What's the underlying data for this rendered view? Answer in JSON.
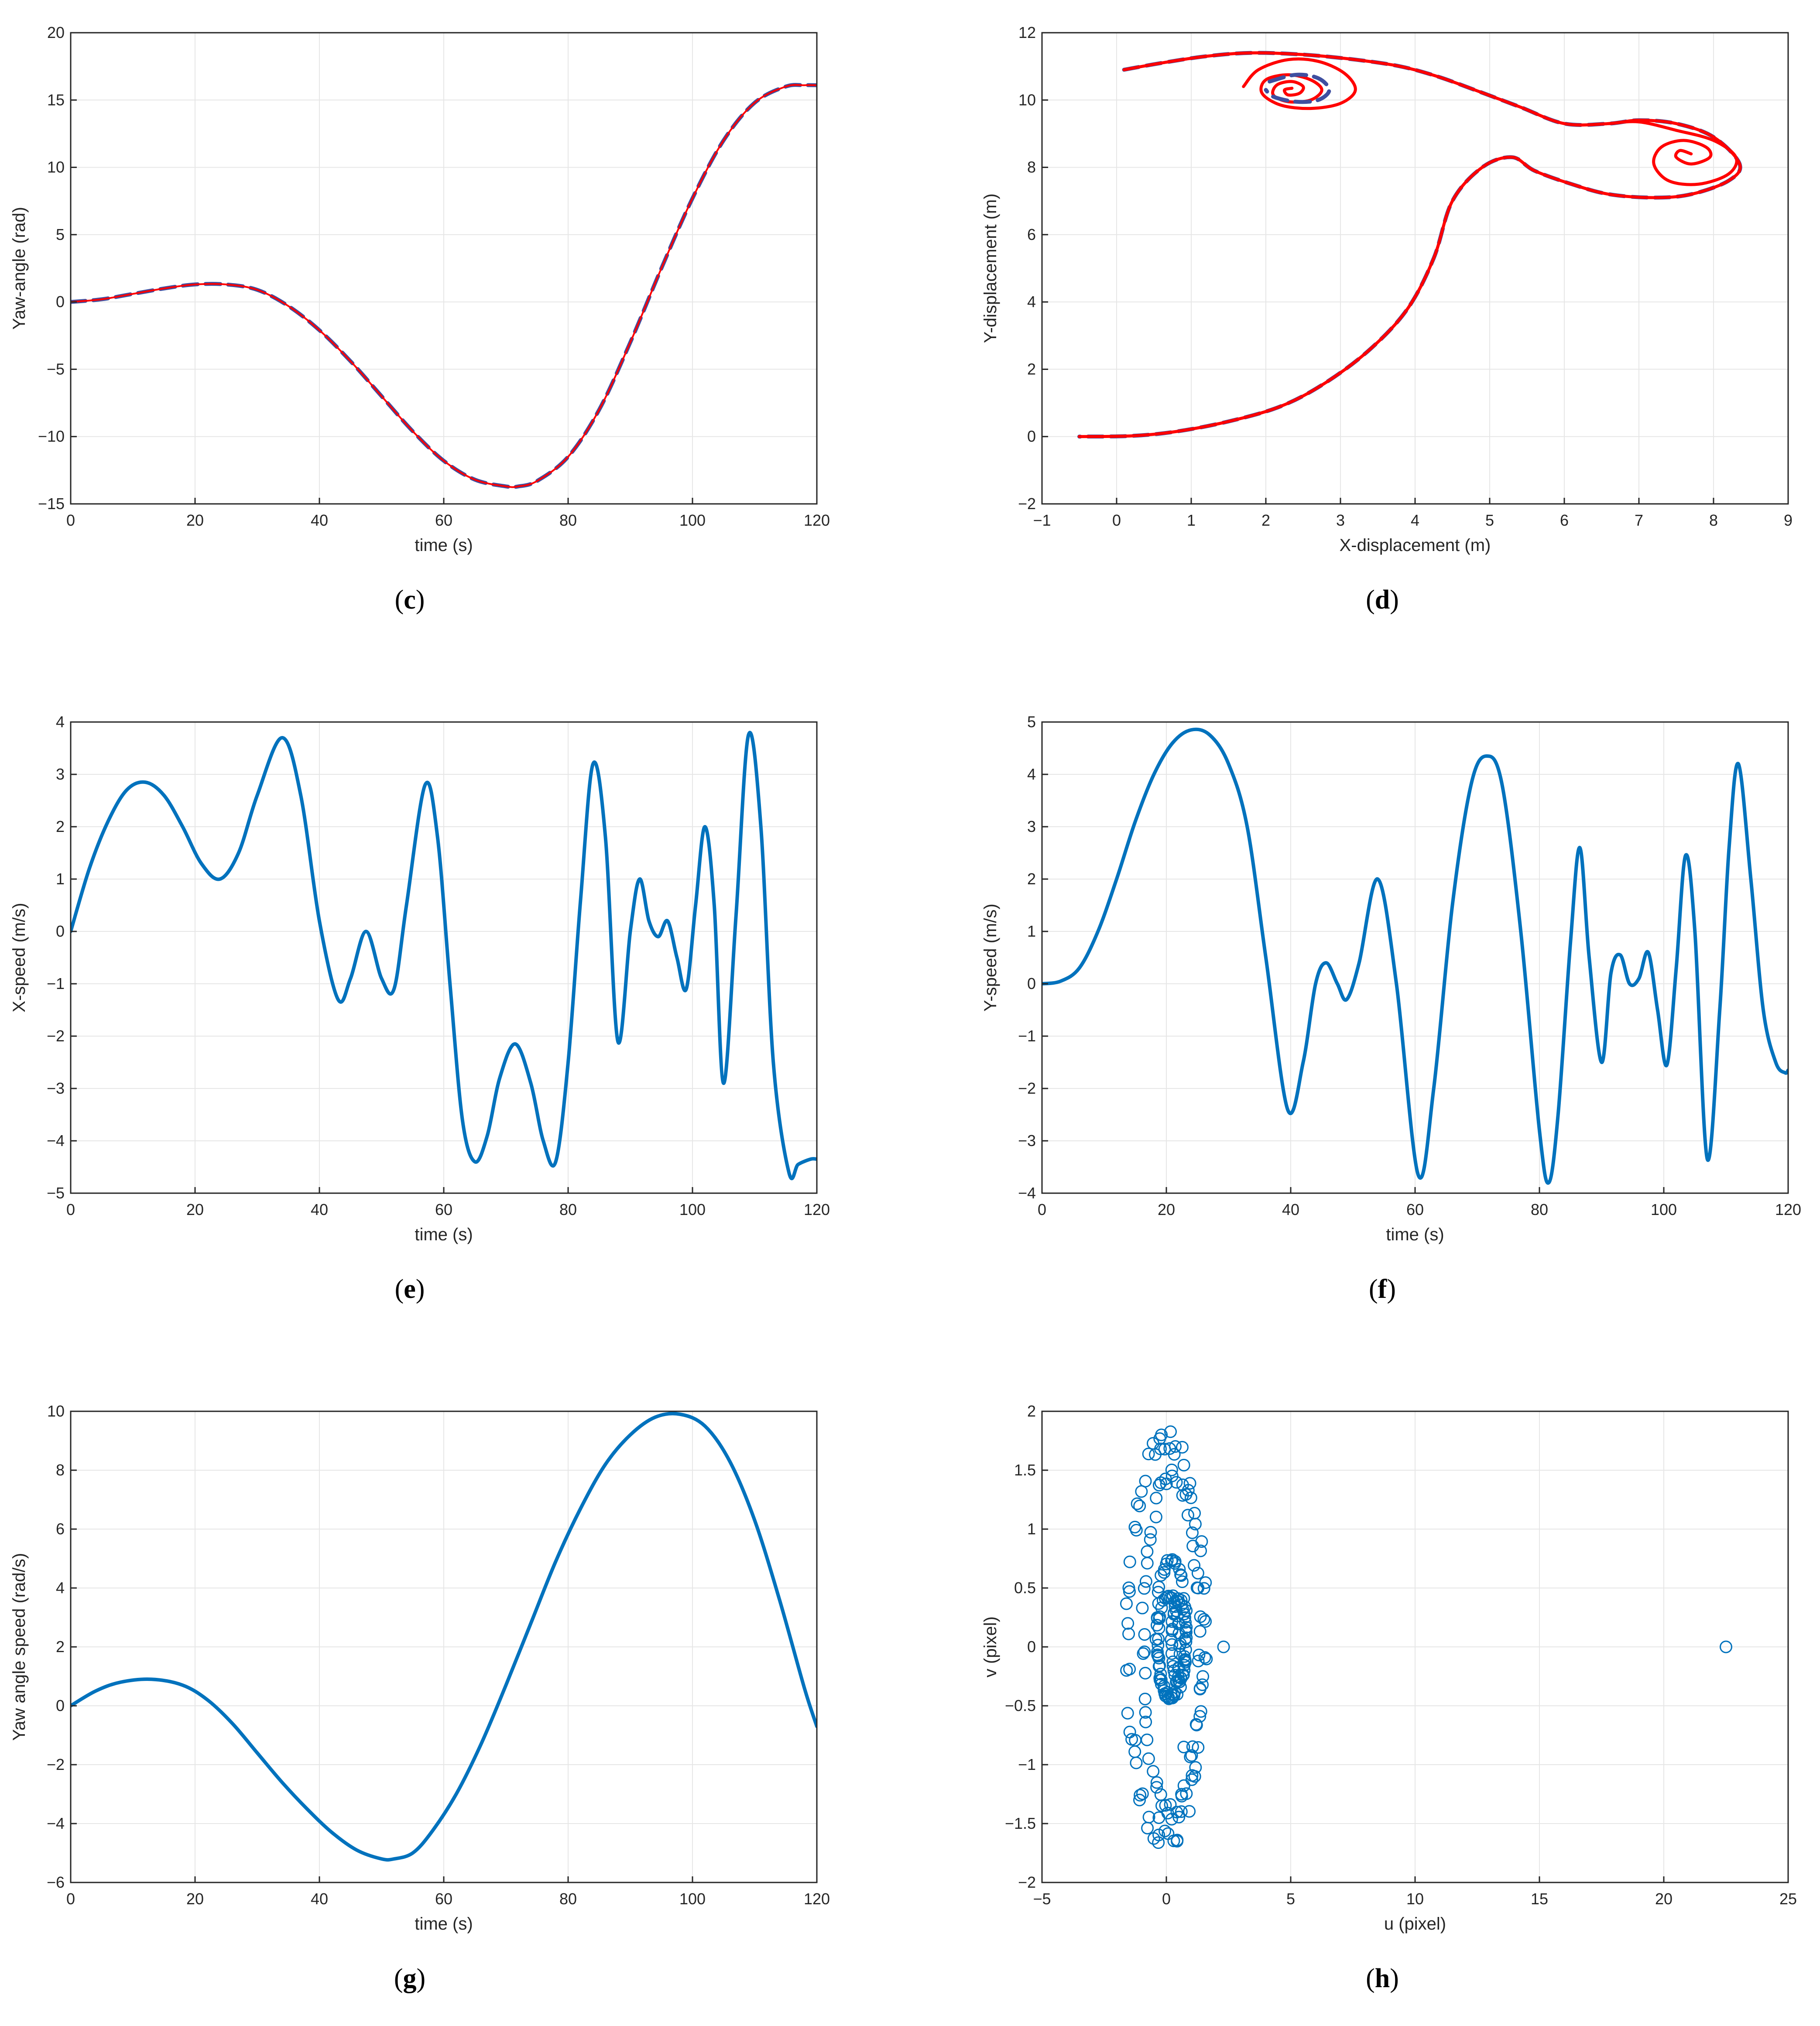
{
  "colors": {
    "blue": "#0072BD",
    "red": "#FF0000",
    "dashed_blue": "#3F4FA0",
    "grid": "#E6E6E6",
    "axis": "#262626"
  },
  "chart_data": [
    {
      "id": "c",
      "caption_letter": "c",
      "type": "line",
      "xlabel": "time (s)",
      "ylabel": "Yaw-angle (rad)",
      "xlim": [
        0,
        120
      ],
      "ylim": [
        -15,
        20
      ],
      "xticks": [
        0,
        20,
        40,
        60,
        80,
        100,
        120
      ],
      "yticks": [
        -15,
        -10,
        -5,
        0,
        5,
        10,
        15,
        20
      ],
      "grid": true,
      "series": [
        {
          "style": "dashed-blue",
          "x": [
            0,
            5,
            10,
            15,
            20,
            25,
            30,
            35,
            40,
            45,
            50,
            55,
            60,
            65,
            70,
            72,
            75,
            80,
            85,
            90,
            95,
            100,
            105,
            110,
            115,
            118,
            120
          ],
          "y": [
            0,
            0.2,
            0.6,
            1.0,
            1.3,
            1.3,
            0.9,
            -0.3,
            -2.1,
            -4.4,
            -7.0,
            -9.6,
            -11.8,
            -13.2,
            -13.7,
            -13.7,
            -13.3,
            -11.5,
            -8.0,
            -3.0,
            2.5,
            7.7,
            12.0,
            14.8,
            16.0,
            16.1,
            16.1
          ]
        },
        {
          "style": "solid-red",
          "x": [
            0,
            5,
            10,
            15,
            20,
            25,
            30,
            35,
            40,
            45,
            50,
            55,
            60,
            65,
            70,
            72,
            75,
            80,
            85,
            90,
            95,
            100,
            105,
            110,
            115,
            118,
            120
          ],
          "y": [
            0,
            0.2,
            0.6,
            1.0,
            1.3,
            1.3,
            0.9,
            -0.3,
            -2.1,
            -4.4,
            -7.0,
            -9.6,
            -11.8,
            -13.2,
            -13.7,
            -13.7,
            -13.3,
            -11.5,
            -8.0,
            -3.0,
            2.5,
            7.7,
            12.0,
            14.8,
            16.0,
            16.1,
            16.1
          ]
        }
      ]
    },
    {
      "id": "d",
      "caption_letter": "d",
      "type": "line",
      "xlabel": "X-displacement (m)",
      "ylabel": "Y-displacement (m)",
      "xlim": [
        -1,
        9
      ],
      "ylim": [
        -2,
        12
      ],
      "xticks": [
        -1,
        0,
        1,
        2,
        3,
        4,
        5,
        6,
        7,
        8,
        9
      ],
      "yticks": [
        -2,
        0,
        2,
        4,
        6,
        8,
        10,
        12
      ],
      "grid": true,
      "series": [
        {
          "style": "dashed-blue",
          "x": [
            0.1,
            0.6,
            1.2,
            1.8,
            2.5,
            3.2,
            3.8,
            4.3,
            4.8,
            5.4,
            6.0,
            6.6,
            7.0,
            7.5,
            8.0,
            8.35,
            8.2,
            7.7,
            7.2,
            6.6,
            6.1,
            5.6,
            5.3,
            4.9,
            4.5,
            4.25,
            3.9,
            3.4,
            2.8,
            2.2,
            1.5,
            0.8,
            0.2,
            -0.5
          ],
          "y": [
            10.9,
            11.1,
            11.3,
            11.4,
            11.35,
            11.2,
            11.0,
            10.7,
            10.3,
            9.8,
            9.3,
            9.3,
            9.4,
            9.3,
            8.9,
            8.1,
            7.6,
            7.2,
            7.1,
            7.2,
            7.5,
            7.9,
            8.3,
            8.0,
            7.0,
            5.3,
            3.8,
            2.6,
            1.6,
            0.9,
            0.45,
            0.15,
            0.02,
            0
          ]
        },
        {
          "style": "solid-red",
          "x": [
            0.1,
            0.6,
            1.2,
            1.8,
            2.5,
            3.2,
            3.8,
            4.3,
            4.8,
            5.4,
            6.0,
            6.6,
            7.0,
            7.5,
            8.0,
            8.35,
            8.2,
            7.7,
            7.2,
            6.6,
            6.1,
            5.6,
            5.3,
            4.9,
            4.5,
            4.25,
            3.9,
            3.4,
            2.8,
            2.2,
            1.5,
            0.8,
            0.2,
            -0.5
          ],
          "y": [
            10.9,
            11.1,
            11.3,
            11.4,
            11.35,
            11.2,
            11.0,
            10.7,
            10.3,
            9.8,
            9.3,
            9.3,
            9.4,
            9.3,
            8.9,
            8.1,
            7.6,
            7.2,
            7.1,
            7.2,
            7.5,
            7.9,
            8.3,
            8.0,
            7.0,
            5.3,
            3.8,
            2.6,
            1.6,
            0.9,
            0.45,
            0.15,
            0.02,
            0
          ]
        },
        {
          "style": "solid-red",
          "x": [
            1.7,
            1.9,
            2.3,
            2.7,
            3.05,
            3.2,
            3.0,
            2.6,
            2.2,
            1.95,
            2.0,
            2.3,
            2.6,
            2.75,
            2.6,
            2.3,
            2.1,
            2.15,
            2.35,
            2.5,
            2.45,
            2.3,
            2.25,
            2.35
          ],
          "y": [
            10.4,
            10.9,
            11.2,
            11.15,
            10.8,
            10.3,
            9.9,
            9.75,
            9.85,
            10.2,
            10.6,
            10.75,
            10.6,
            10.3,
            10.0,
            9.95,
            10.15,
            10.45,
            10.55,
            10.4,
            10.2,
            10.15,
            10.3,
            10.35
          ]
        },
        {
          "style": "dashed-blue",
          "x": [
            2.05,
            2.4,
            2.7,
            2.85,
            2.7,
            2.4,
            2.1,
            2.0
          ],
          "y": [
            10.55,
            10.75,
            10.65,
            10.3,
            10.0,
            9.95,
            10.1,
            10.3
          ]
        },
        {
          "style": "solid-red",
          "x": [
            6.6,
            7.0,
            7.5,
            8.0,
            8.3,
            8.2,
            7.8,
            7.4,
            7.2,
            7.3,
            7.6,
            7.9,
            7.95,
            7.7,
            7.5,
            7.55,
            7.7
          ],
          "y": [
            9.3,
            9.35,
            9.1,
            8.8,
            8.3,
            7.8,
            7.5,
            7.6,
            8.1,
            8.6,
            8.8,
            8.6,
            8.3,
            8.1,
            8.3,
            8.5,
            8.4
          ]
        }
      ]
    },
    {
      "id": "e",
      "caption_letter": "e",
      "type": "line",
      "xlabel": "time (s)",
      "ylabel": "X-speed (m/s)",
      "xlim": [
        0,
        120
      ],
      "ylim": [
        -5,
        4
      ],
      "xticks": [
        0,
        20,
        40,
        60,
        80,
        100,
        120
      ],
      "yticks": [
        -5,
        -4,
        -3,
        -2,
        -1,
        0,
        1,
        2,
        3,
        4
      ],
      "grid": true,
      "series": [
        {
          "style": "solid-blue",
          "x": [
            0,
            3,
            6,
            9,
            12,
            15,
            18,
            21,
            24,
            27,
            30,
            34,
            37,
            40,
            43,
            45,
            47.5,
            50,
            52,
            54,
            57,
            59,
            61,
            63,
            65,
            67,
            69,
            71.5,
            74,
            76,
            78,
            80,
            82,
            84,
            86,
            88,
            90,
            91.5,
            93,
            94.5,
            96,
            97.5,
            99,
            100.5,
            102,
            103.5,
            105,
            107,
            109,
            111,
            113,
            115.5,
            117,
            119,
            120
          ],
          "y": [
            0,
            1.2,
            2.1,
            2.7,
            2.85,
            2.6,
            2.0,
            1.3,
            1.0,
            1.5,
            2.6,
            3.7,
            2.6,
            0.2,
            -1.3,
            -0.9,
            0,
            -0.9,
            -1.1,
            0.5,
            2.8,
            1.8,
            -1.0,
            -3.6,
            -4.4,
            -3.9,
            -2.8,
            -2.15,
            -2.9,
            -4.0,
            -4.4,
            -2.5,
            0.6,
            3.2,
            1.8,
            -2.1,
            0,
            1.0,
            0.2,
            -0.1,
            0.2,
            -0.5,
            -1.1,
            0.5,
            2.0,
            0.5,
            -2.9,
            0.3,
            3.75,
            2.0,
            -2.5,
            -4.6,
            -4.45,
            -4.35,
            -4.35
          ]
        }
      ]
    },
    {
      "id": "f",
      "caption_letter": "f",
      "type": "line",
      "xlabel": "time (s)",
      "ylabel": "Y-speed (m/s)",
      "xlim": [
        0,
        120
      ],
      "ylim": [
        -4,
        5
      ],
      "xticks": [
        0,
        20,
        40,
        60,
        80,
        100,
        120
      ],
      "yticks": [
        -4,
        -3,
        -2,
        -1,
        0,
        1,
        2,
        3,
        4,
        5
      ],
      "grid": true,
      "series": [
        {
          "style": "solid-blue",
          "x": [
            0,
            3,
            6,
            9,
            12,
            15,
            18,
            21,
            24,
            27,
            30,
            33,
            36,
            39.5,
            42,
            44,
            45.7,
            47.5,
            49,
            51,
            54,
            57,
            60.5,
            63,
            66,
            69,
            71.5,
            74,
            77,
            80,
            81.5,
            83,
            85,
            86.5,
            88,
            90,
            91.5,
            93,
            94.5,
            96,
            97.5,
            99,
            100.5,
            102,
            103.5,
            105,
            107,
            109,
            110.5,
            112,
            114,
            116,
            118,
            119.5,
            120
          ],
          "y": [
            0,
            0.05,
            0.3,
            1.0,
            2.0,
            3.1,
            4.0,
            4.6,
            4.85,
            4.75,
            4.2,
            3.0,
            0.5,
            -2.4,
            -1.5,
            0,
            0.4,
            0,
            -0.3,
            0.4,
            2.0,
            0,
            -3.65,
            -2.0,
            1.5,
            3.8,
            4.35,
            3.8,
            1.0,
            -2.8,
            -3.8,
            -2.5,
            0.8,
            2.6,
            0.5,
            -1.5,
            0.2,
            0.55,
            0,
            0.1,
            0.6,
            -0.5,
            -1.55,
            0.3,
            2.45,
            1.0,
            -3.35,
            -0.5,
            2.6,
            4.2,
            2.0,
            -0.5,
            -1.5,
            -1.7,
            -1.65
          ]
        }
      ]
    },
    {
      "id": "g",
      "caption_letter": "g",
      "type": "line",
      "xlabel": "time (s)",
      "ylabel": "Yaw angle speed (rad/s)",
      "xlim": [
        0,
        120
      ],
      "ylim": [
        -6,
        10
      ],
      "xticks": [
        0,
        20,
        40,
        60,
        80,
        100,
        120
      ],
      "yticks": [
        -6,
        -4,
        -2,
        0,
        2,
        4,
        6,
        8,
        10
      ],
      "grid": true,
      "series": [
        {
          "style": "solid-blue",
          "x": [
            0,
            4,
            8,
            13,
            18,
            22,
            26,
            30,
            34,
            38,
            42,
            46,
            50,
            52,
            55,
            58,
            62,
            66,
            70,
            74,
            78,
            82,
            86,
            90,
            94,
            98,
            102,
            106,
            110,
            114,
            118,
            120
          ],
          "y": [
            0,
            0.5,
            0.8,
            0.9,
            0.7,
            0.2,
            -0.6,
            -1.6,
            -2.6,
            -3.5,
            -4.3,
            -4.9,
            -5.2,
            -5.2,
            -5.0,
            -4.3,
            -3.0,
            -1.3,
            0.7,
            2.8,
            4.9,
            6.7,
            8.2,
            9.2,
            9.8,
            9.9,
            9.5,
            8.3,
            6.3,
            3.6,
            0.6,
            -0.7
          ]
        }
      ]
    },
    {
      "id": "h",
      "caption_letter": "h",
      "type": "scatter",
      "xlabel": "u (pixel)",
      "ylabel": "v (pixel)",
      "xlim": [
        -5,
        25
      ],
      "ylim": [
        -2,
        2
      ],
      "xticks": [
        -5,
        0,
        5,
        10,
        15,
        20,
        25
      ],
      "yticks": [
        -2,
        -1.5,
        -1,
        -0.5,
        0,
        0.5,
        1,
        1.5,
        2
      ],
      "grid": true,
      "clusters": [
        {
          "cx": 0.0,
          "cy": 0.05,
          "rx": 1.6,
          "ry": 1.72,
          "n": 70
        },
        {
          "cx": 0.2,
          "cy": 0.0,
          "rx": 1.15,
          "ry": 1.45,
          "n": 60
        },
        {
          "cx": 0.2,
          "cy": 0.15,
          "rx": 0.6,
          "ry": 0.6,
          "n": 45
        },
        {
          "cx": 0.1,
          "cy": 0.0,
          "rx": 0.45,
          "ry": 0.45,
          "n": 40
        },
        {
          "cx": 0.5,
          "cy": 0.05,
          "rx": 0.3,
          "ry": 0.35,
          "n": 35
        }
      ],
      "points": [
        [
          22.5,
          0
        ],
        [
          2.3,
          0
        ],
        [
          -0.3,
          -1.45
        ],
        [
          0.7,
          -0.85
        ],
        [
          -0.2,
          1.8
        ]
      ]
    }
  ]
}
